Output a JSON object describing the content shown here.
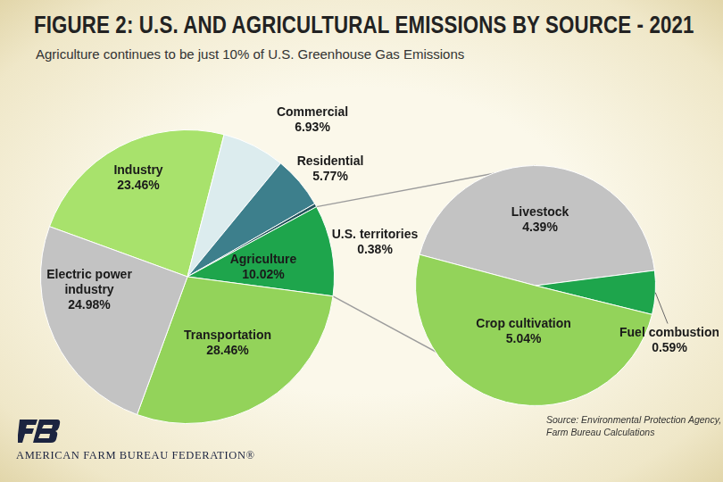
{
  "title": "FIGURE 2: U.S. AND AGRICULTURAL EMISSIONS BY SOURCE - 2021",
  "subtitle": "Agriculture continues to be just 10% of U.S. Greenhouse Gas Emissions",
  "chart_data": [
    {
      "type": "pie",
      "categories": [
        "Industry",
        "Commercial",
        "Residential",
        "U.S. territories",
        "Agriculture",
        "Transportation",
        "Electric power industry"
      ],
      "values": [
        23.46,
        6.93,
        5.77,
        0.38,
        10.02,
        28.46,
        24.98
      ],
      "value_labels": [
        "23.46%",
        "6.93%",
        "5.77%",
        "0.38%",
        "10.02%",
        "28.46%",
        "24.98%"
      ],
      "colors": [
        "#a8e26c",
        "#dcecee",
        "#3d7f8c",
        "#24535c",
        "#1ea54c",
        "#93d35a",
        "#c3c3c3"
      ],
      "data_labels": true
    },
    {
      "type": "pie",
      "categories": [
        "Livestock",
        "Fuel combustion",
        "Crop cultivation"
      ],
      "values": [
        4.39,
        0.59,
        5.04
      ],
      "value_labels": [
        "4.39%",
        "0.59%",
        "5.04%"
      ],
      "colors": [
        "#c3c3c3",
        "#1ea54c",
        "#93d35a"
      ],
      "data_labels": true
    }
  ],
  "source": [
    "Source: Environmental Protection Agency,",
    "Farm Bureau Calculations"
  ],
  "footer": "AMERICAN FARM BUREAU FEDERATION®"
}
